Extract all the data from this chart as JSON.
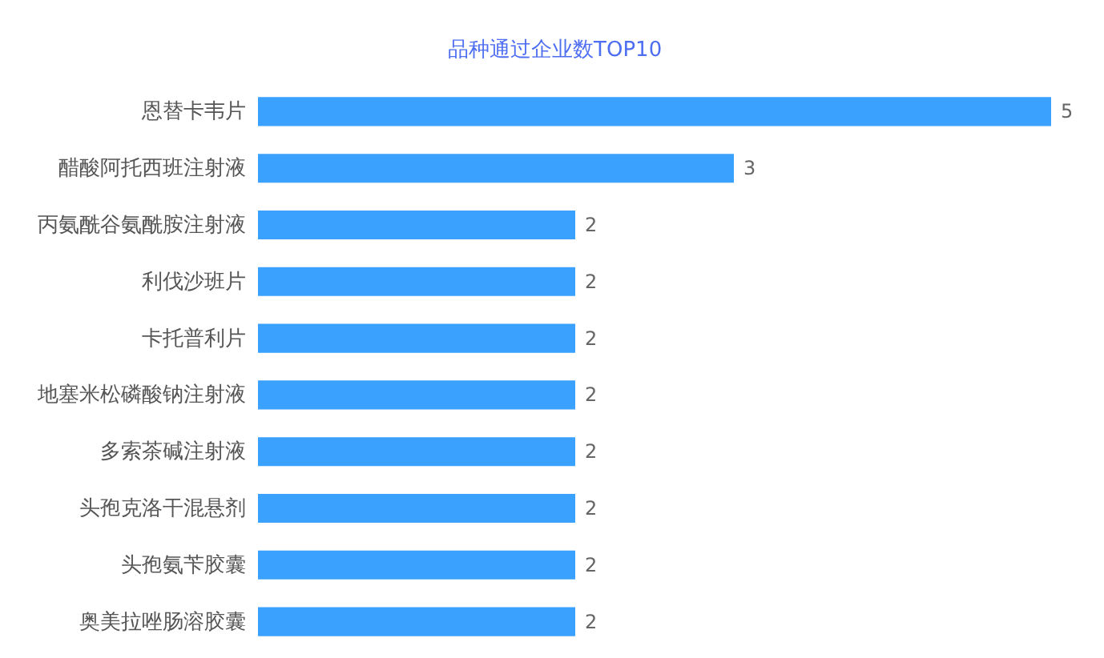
{
  "chart_data": {
    "type": "bar",
    "orientation": "horizontal",
    "title": "品种通过企业数TOP10",
    "categories": [
      "恩替卡韦片",
      "醋酸阿托西班注射液",
      "丙氨酰谷氨酰胺注射液",
      "利伐沙班片",
      "卡托普利片",
      "地塞米松磷酸钠注射液",
      "多索茶碱注射液",
      "头孢克洛干混悬剂",
      "头孢氨苄胶囊",
      "奥美拉唑肠溶胶囊"
    ],
    "values": [
      5,
      3,
      2,
      2,
      2,
      2,
      2,
      2,
      2,
      2
    ],
    "color": "#3ba1ff",
    "data_labels": true,
    "grid": false
  }
}
